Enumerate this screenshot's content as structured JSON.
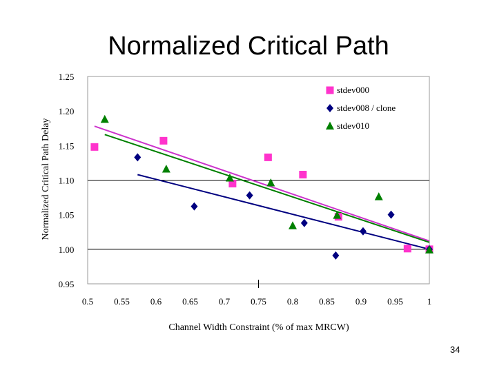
{
  "slide": {
    "title": "Normalized Critical Path",
    "page_number": "34"
  },
  "chart_data": {
    "type": "scatter",
    "title": "Normalized Critical Path",
    "xlabel": "Channel Width Constraint (% of max MRCW)",
    "ylabel": "Normalized Critical Path Delay",
    "xlim": [
      0.5,
      1.0
    ],
    "ylim": [
      0.95,
      1.25
    ],
    "x_ticks": [
      "0.5",
      "0.55",
      "0.6",
      "0.65",
      "0.7",
      "0.75",
      "0.8",
      "0.85",
      "0.9",
      "0.95",
      "1"
    ],
    "y_ticks": [
      "1.25",
      "1.20",
      "1.15",
      "1.10",
      "1.05",
      "1.00",
      "0.95"
    ],
    "reference_lines_y": [
      1.0,
      1.1
    ],
    "legend_position": "top-right",
    "series": [
      {
        "name": "stdev000",
        "marker": "square",
        "color": "#ff33cc",
        "x": [
          0.51,
          0.611,
          0.712,
          0.764,
          0.815,
          0.867,
          0.968,
          1.0
        ],
        "y": [
          1.148,
          1.157,
          1.095,
          1.133,
          1.108,
          1.047,
          1.001,
          1.0
        ],
        "trend": {
          "x": [
            0.51,
            1.0
          ],
          "y": [
            1.178,
            1.012
          ],
          "color": "#cc33cc"
        }
      },
      {
        "name": "stdev008 / clone",
        "marker": "diamond",
        "color": "#000080",
        "x": [
          0.573,
          0.656,
          0.737,
          0.817,
          0.863,
          0.903,
          0.944,
          1.0
        ],
        "y": [
          1.133,
          1.062,
          1.078,
          1.038,
          0.991,
          1.026,
          1.05,
          1.0
        ],
        "trend": {
          "x": [
            0.573,
            1.0
          ],
          "y": [
            1.108,
            1.0
          ],
          "color": "#000080"
        }
      },
      {
        "name": "stdev010",
        "marker": "triangle",
        "color": "#008000",
        "x": [
          0.525,
          0.615,
          0.708,
          0.768,
          0.8,
          0.865,
          0.926,
          1.0
        ],
        "y": [
          1.188,
          1.116,
          1.103,
          1.096,
          1.034,
          1.049,
          1.076,
          0.999
        ],
        "trend": {
          "x": [
            0.525,
            1.0
          ],
          "y": [
            1.166,
            1.01
          ],
          "color": "#008000"
        }
      }
    ]
  }
}
